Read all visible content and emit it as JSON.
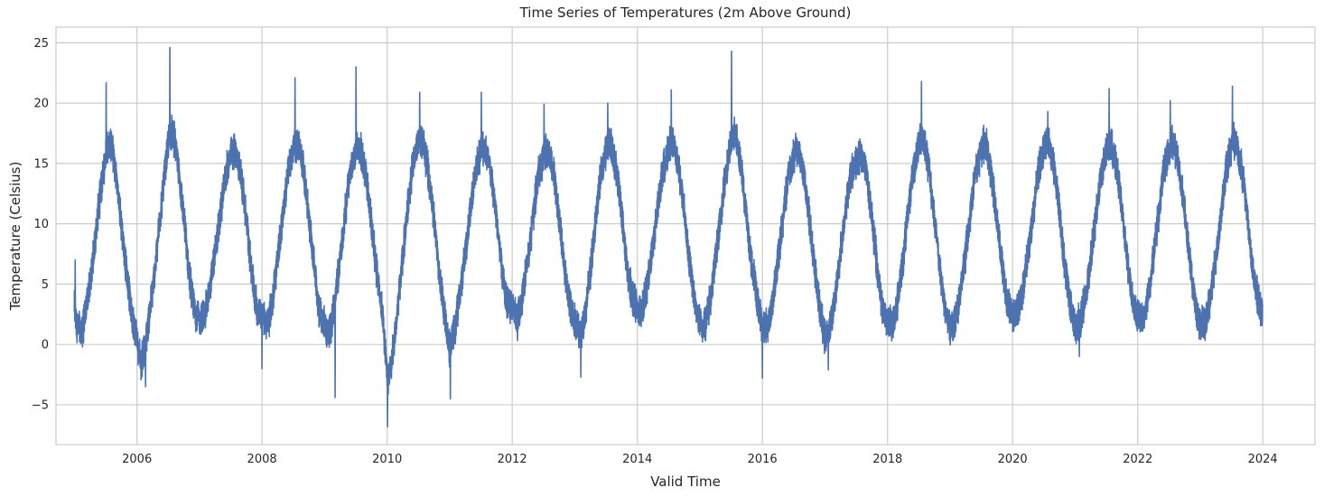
{
  "chart_data": {
    "type": "line",
    "title": "Time Series of Temperatures (2m Above Ground)",
    "xlabel": "Valid Time",
    "ylabel": "Temperature (Celsius)",
    "xlim": [
      "2004-09-15",
      "2024-11-01"
    ],
    "ylim": [
      -8.3,
      26.3
    ],
    "x_ticks": [
      "2006",
      "2008",
      "2010",
      "2012",
      "2014",
      "2016",
      "2018",
      "2020",
      "2022",
      "2024"
    ],
    "y_ticks": [
      -5,
      0,
      5,
      10,
      15,
      20,
      25
    ],
    "y_tick_labels": [
      "−5",
      "0",
      "5",
      "10",
      "15",
      "20",
      "25"
    ],
    "grid": true,
    "line_color": "#4c72b0",
    "series": [
      {
        "x": [
          "2004-12-31",
          "2005-01-15",
          "2005-02-15",
          "2005-03-15",
          "2005-04-15",
          "2005-05-15",
          "2005-06-15",
          "2005-07-10",
          "2005-08-05",
          "2005-09-01",
          "2005-10-01",
          "2005-11-01",
          "2005-12-01",
          "2006-01-01",
          "2006-01-25",
          "2006-02-15",
          "2006-03-15",
          "2006-04-15",
          "2006-05-15",
          "2006-06-15",
          "2006-07-10",
          "2006-08-01",
          "2006-09-01",
          "2006-10-01",
          "2006-11-01",
          "2006-12-01",
          "2007-01-01",
          "2007-02-01",
          "2007-03-01",
          "2007-04-01",
          "2007-05-01",
          "2007-06-01",
          "2007-07-10",
          "2007-08-01",
          "2007-09-01",
          "2007-10-01",
          "2007-11-01",
          "2007-12-01",
          "2008-01-01",
          "2008-02-01",
          "2008-03-01",
          "2008-04-01",
          "2008-05-01",
          "2008-06-01",
          "2008-07-10",
          "2008-08-01",
          "2008-09-01",
          "2008-10-01",
          "2008-11-01",
          "2008-12-01",
          "2009-01-01",
          "2009-02-01",
          "2009-03-01",
          "2009-04-01",
          "2009-05-01",
          "2009-06-01",
          "2009-07-10",
          "2009-08-01",
          "2009-09-01",
          "2009-10-01",
          "2009-11-01",
          "2009-12-01",
          "2010-01-05",
          "2010-02-01",
          "2010-03-01",
          "2010-04-01",
          "2010-05-01",
          "2010-06-01",
          "2010-07-10",
          "2010-08-01",
          "2010-09-01",
          "2010-10-01",
          "2010-11-01",
          "2010-12-01",
          "2011-01-01",
          "2011-02-01",
          "2011-03-01",
          "2011-04-01",
          "2011-05-01",
          "2011-06-01",
          "2011-07-10",
          "2011-08-01",
          "2011-09-01",
          "2011-10-01",
          "2011-11-01",
          "2011-12-01",
          "2012-01-01",
          "2012-02-01",
          "2012-03-01",
          "2012-04-01",
          "2012-05-01",
          "2012-06-01",
          "2012-07-10",
          "2012-08-01",
          "2012-09-01",
          "2012-10-01",
          "2012-11-01",
          "2012-12-01",
          "2013-01-01",
          "2013-02-01",
          "2013-03-01",
          "2013-04-01",
          "2013-05-01",
          "2013-06-01",
          "2013-07-10",
          "2013-08-01",
          "2013-09-01",
          "2013-10-01",
          "2013-11-01",
          "2013-12-01",
          "2014-01-01",
          "2014-02-01",
          "2014-03-01",
          "2014-04-01",
          "2014-05-01",
          "2014-06-01",
          "2014-07-10",
          "2014-08-01",
          "2014-09-01",
          "2014-10-01",
          "2014-11-01",
          "2014-12-01",
          "2015-01-01",
          "2015-02-01",
          "2015-03-01",
          "2015-04-01",
          "2015-05-01",
          "2015-06-01",
          "2015-07-10",
          "2015-08-01",
          "2015-09-01",
          "2015-10-01",
          "2015-11-01",
          "2015-12-01",
          "2016-01-01",
          "2016-02-01",
          "2016-03-01",
          "2016-04-01",
          "2016-05-01",
          "2016-06-01",
          "2016-07-10",
          "2016-08-01",
          "2016-09-01",
          "2016-10-01",
          "2016-11-01",
          "2016-12-01",
          "2017-01-01",
          "2017-02-01",
          "2017-03-01",
          "2017-04-01",
          "2017-05-01",
          "2017-06-01",
          "2017-07-10",
          "2017-08-01",
          "2017-09-01",
          "2017-10-01",
          "2017-11-01",
          "2017-12-01",
          "2018-01-01",
          "2018-02-01",
          "2018-03-01",
          "2018-04-01",
          "2018-05-01",
          "2018-06-01",
          "2018-07-10",
          "2018-08-01",
          "2018-09-01",
          "2018-10-01",
          "2018-11-01",
          "2018-12-01",
          "2019-01-01",
          "2019-02-01",
          "2019-03-01",
          "2019-04-01",
          "2019-05-01",
          "2019-06-01",
          "2019-07-10",
          "2019-08-01",
          "2019-09-01",
          "2019-10-01",
          "2019-11-01",
          "2019-12-01",
          "2020-01-01",
          "2020-02-01",
          "2020-03-01",
          "2020-04-01",
          "2020-05-01",
          "2020-06-01",
          "2020-07-10",
          "2020-08-01",
          "2020-09-01",
          "2020-10-01",
          "2020-11-01",
          "2020-12-01",
          "2021-01-01",
          "2021-02-01",
          "2021-03-01",
          "2021-04-01",
          "2021-05-01",
          "2021-06-01",
          "2021-07-10",
          "2021-08-01",
          "2021-09-01",
          "2021-10-01",
          "2021-11-01",
          "2021-12-01",
          "2022-01-01",
          "2022-02-01",
          "2022-03-01",
          "2022-04-01",
          "2022-05-01",
          "2022-06-01",
          "2022-07-10",
          "2022-08-01",
          "2022-09-01",
          "2022-10-01",
          "2022-11-01",
          "2022-12-01",
          "2023-01-01",
          "2023-02-01",
          "2023-03-01",
          "2023-04-01",
          "2023-05-01",
          "2023-06-01",
          "2023-07-10",
          "2023-08-01",
          "2023-09-01",
          "2023-10-01",
          "2023-11-01",
          "2023-12-01",
          "2023-12-31"
        ],
        "y": [
          3.2,
          1.5,
          1.0,
          3.5,
          6.5,
          10.5,
          14.0,
          16.5,
          16.5,
          14.0,
          10.0,
          6.0,
          2.5,
          0.5,
          -1.5,
          -0.5,
          2.5,
          6.0,
          10.5,
          14.5,
          17.5,
          17.5,
          14.5,
          10.5,
          6.0,
          3.0,
          2.0,
          2.5,
          4.5,
          7.5,
          10.5,
          14.0,
          16.0,
          16.0,
          14.0,
          10.5,
          6.0,
          3.0,
          2.5,
          1.5,
          3.5,
          7.0,
          10.5,
          14.5,
          16.5,
          16.5,
          14.5,
          10.5,
          6.5,
          2.5,
          1.5,
          1.0,
          3.5,
          7.0,
          11.0,
          14.5,
          16.5,
          16.0,
          14.0,
          10.0,
          6.0,
          3.0,
          -3.0,
          -1.0,
          2.5,
          7.0,
          11.5,
          15.0,
          17.0,
          16.5,
          14.0,
          10.5,
          6.0,
          2.5,
          -0.5,
          1.5,
          4.0,
          7.5,
          11.0,
          14.5,
          16.5,
          16.0,
          14.0,
          10.5,
          6.5,
          3.5,
          3.0,
          2.0,
          4.0,
          7.0,
          10.5,
          14.0,
          16.0,
          16.0,
          14.0,
          10.5,
          6.5,
          3.5,
          2.0,
          0.5,
          2.5,
          6.0,
          10.0,
          14.0,
          16.5,
          16.5,
          14.5,
          11.0,
          6.5,
          4.0,
          3.0,
          3.0,
          5.0,
          8.0,
          11.5,
          14.5,
          16.5,
          16.5,
          14.5,
          11.0,
          7.0,
          3.5,
          2.0,
          1.5,
          3.5,
          7.0,
          10.5,
          14.0,
          17.5,
          17.0,
          14.5,
          10.5,
          6.5,
          4.0,
          1.5,
          1.5,
          3.5,
          7.0,
          10.5,
          14.0,
          16.0,
          16.0,
          14.0,
          10.5,
          6.5,
          3.0,
          0.5,
          1.5,
          4.0,
          7.5,
          11.0,
          14.0,
          15.5,
          15.5,
          14.0,
          10.5,
          6.5,
          3.0,
          2.0,
          1.5,
          3.5,
          7.0,
          11.0,
          14.5,
          17.0,
          17.0,
          14.5,
          10.5,
          6.5,
          3.0,
          1.5,
          2.0,
          4.0,
          7.5,
          11.0,
          14.5,
          16.5,
          16.5,
          14.0,
          10.5,
          6.5,
          3.5,
          2.5,
          3.0,
          4.5,
          7.5,
          11.0,
          14.5,
          16.5,
          16.5,
          14.5,
          11.0,
          6.5,
          3.5,
          1.5,
          2.0,
          4.0,
          7.0,
          10.5,
          14.0,
          16.5,
          16.5,
          14.5,
          11.0,
          7.0,
          3.5,
          2.5,
          2.0,
          4.0,
          7.0,
          10.5,
          14.5,
          16.5,
          16.5,
          14.5,
          11.0,
          7.0,
          3.5,
          1.5,
          2.0,
          4.0,
          7.0,
          10.5,
          14.5,
          17.0,
          16.5,
          14.5,
          11.0,
          6.5,
          4.0,
          2.5
        ],
        "spikes": [
          [
            "2005-01-05",
            7.0
          ],
          [
            "2005-07-05",
            21.7
          ],
          [
            "2006-02-20",
            -3.5
          ],
          [
            "2006-07-12",
            24.6
          ],
          [
            "2008-01-01",
            -2.0
          ],
          [
            "2008-07-12",
            22.1
          ],
          [
            "2009-03-03",
            -4.4
          ],
          [
            "2009-07-03",
            23.0
          ],
          [
            "2010-01-03",
            -6.8
          ],
          [
            "2010-07-10",
            20.9
          ],
          [
            "2011-01-05",
            -4.5
          ],
          [
            "2011-07-05",
            20.9
          ],
          [
            "2012-07-05",
            19.9
          ],
          [
            "2013-02-05",
            -2.7
          ],
          [
            "2013-07-12",
            20.0
          ],
          [
            "2014-07-18",
            21.1
          ],
          [
            "2015-07-05",
            24.3
          ],
          [
            "2016-01-01",
            -2.8
          ],
          [
            "2017-01-20",
            -2.1
          ],
          [
            "2018-07-18",
            21.8
          ],
          [
            "2020-07-25",
            19.3
          ],
          [
            "2021-01-25",
            -1.0
          ],
          [
            "2021-07-18",
            21.2
          ],
          [
            "2022-07-10",
            20.2
          ],
          [
            "2023-07-08",
            21.4
          ]
        ]
      }
    ]
  }
}
